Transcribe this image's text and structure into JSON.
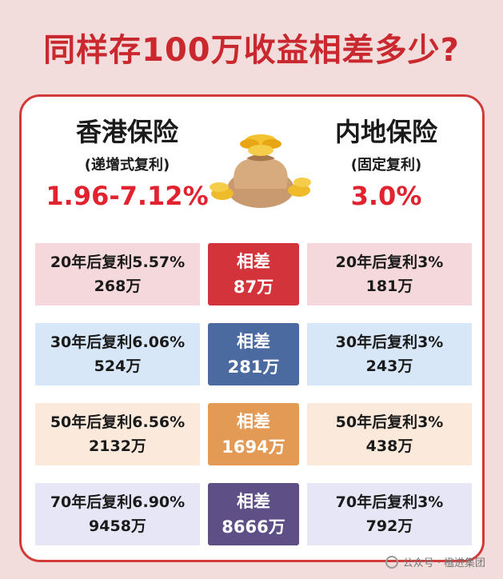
{
  "title": "同样存100万收益相差多少?",
  "left": {
    "name": "香港保险",
    "sub": "(递增式复利)",
    "rate": "1.96-7.12%"
  },
  "right": {
    "name": "内地保险",
    "sub": "(固定复利)",
    "rate": "3.0%"
  },
  "bag_icon": "money-bag-icon",
  "rows": [
    {
      "left_line1": "20年后复利5.57%",
      "left_line2": "268万",
      "diff_label": "相差",
      "diff_value": "87万",
      "right_line1": "20年后复利3%",
      "right_line2": "181万",
      "bg": "#f4d8dc",
      "diff_color": "#d3343b"
    },
    {
      "left_line1": "30年后复利6.06%",
      "left_line2": "524万",
      "diff_label": "相差",
      "diff_value": "281万",
      "right_line1": "30年后复利3%",
      "right_line2": "243万",
      "bg": "#d7e7f7",
      "diff_color": "#4b6a9f"
    },
    {
      "left_line1": "50年后复利6.56%",
      "left_line2": "2132万",
      "diff_label": "相差",
      "diff_value": "1694万",
      "right_line1": "50年后复利3%",
      "right_line2": "438万",
      "bg": "#fbe9dc",
      "diff_color": "#e39a54"
    },
    {
      "left_line1": "70年后复利6.90%",
      "left_line2": "9458万",
      "diff_label": "相差",
      "diff_value": "8666万",
      "right_line1": "70年后复利3%",
      "right_line2": "792万",
      "bg": "#e7e6f7",
      "diff_color": "#5e4f86"
    }
  ],
  "watermark": "公众号 · 楹进集团"
}
